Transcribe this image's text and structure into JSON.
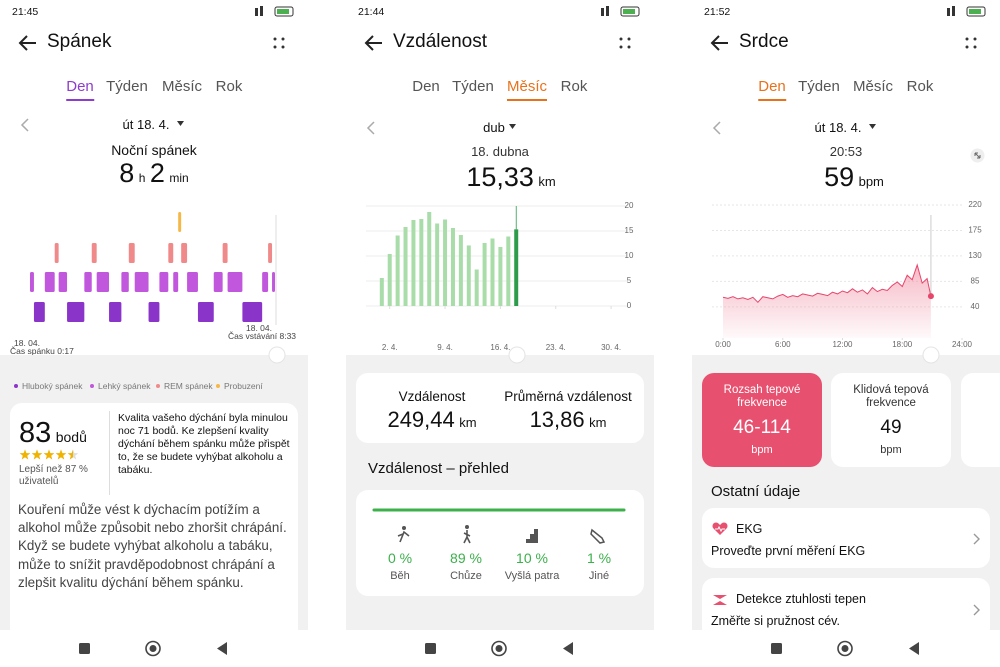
{
  "sleep": {
    "status_time": "21:45",
    "title": "Spánek",
    "tabs": [
      "Den",
      "Týden",
      "Měsíc",
      "Rok"
    ],
    "active_tab": 0,
    "accent": "#8e3ccb",
    "date": "út 18. 4.",
    "summary_label": "Noční spánek",
    "summary_hours": "8",
    "hours_unit": "h",
    "summary_minutes": "2",
    "minutes_unit": "min",
    "chart": {
      "type": "sleep-stages",
      "xlim": [
        0,
        496
      ],
      "series": [
        {
          "name": "Hluboký spánek",
          "color": "#8a34c9",
          "segments": [
            [
              8,
              30
            ],
            [
              75,
              110
            ],
            [
              160,
              185
            ],
            [
              240,
              262
            ],
            [
              340,
              372
            ],
            [
              430,
              470
            ]
          ]
        },
        {
          "name": "Lehký spánek",
          "color": "#c157dc",
          "segments": [
            [
              0,
              8
            ],
            [
              30,
              50
            ],
            [
              58,
              75
            ],
            [
              110,
              125
            ],
            [
              135,
              160
            ],
            [
              185,
              200
            ],
            [
              212,
              240
            ],
            [
              262,
              280
            ],
            [
              290,
              300
            ],
            [
              318,
              340
            ],
            [
              372,
              390
            ],
            [
              400,
              430
            ],
            [
              470,
              482
            ],
            [
              490,
              496
            ]
          ]
        },
        {
          "name": "REM spánek",
          "color": "#f08a8a",
          "segments": [
            [
              50,
              58
            ],
            [
              125,
              135
            ],
            [
              200,
              212
            ],
            [
              280,
              290
            ],
            [
              306,
              318
            ],
            [
              390,
              400
            ],
            [
              482,
              490
            ]
          ]
        },
        {
          "name": "Probuzení",
          "color": "#f6b746",
          "segments": [
            [
              300,
              306
            ]
          ]
        }
      ]
    },
    "start_date": "18. 04.",
    "start_label": "Čas spánku 0:17",
    "end_date": "18. 04.",
    "end_label": "Čas vstávání 8:33",
    "score": "83",
    "score_unit": "bodů",
    "stars": 4.5,
    "better_than": "Lepší než 87 % uživatelů",
    "score_text": "Kvalita vašeho dýchání byla minulou noc 71 bodů. Ke zlepšení kvality dýchání během spánku může přispět to, že se budete vyhýbat alkoholu a tabáku.",
    "advice": "Kouření může vést k dýchacím potížím a alkohol může způsobit nebo zhoršit chrápání. Když se budete vyhýbat alkoholu a tabáku, může to snížit pravděpodobnost chrápání a zlepšit kvalitu dýchání během spánku."
  },
  "distance": {
    "status_time": "21:44",
    "title": "Vzdálenost",
    "tabs": [
      "Den",
      "Týden",
      "Měsíc",
      "Rok"
    ],
    "active_tab": 2,
    "accent": "#e8721c",
    "period": "dub",
    "selected_date": "18. dubna",
    "selected_value": "15,33",
    "unit": "km",
    "chart": {
      "type": "bar",
      "x": [
        1,
        2,
        3,
        4,
        5,
        6,
        7,
        8,
        9,
        10,
        11,
        12,
        13,
        14,
        15,
        16,
        17,
        18
      ],
      "values": [
        5.6,
        10.4,
        14.1,
        15.8,
        17.2,
        17.4,
        18.8,
        16.5,
        17.3,
        15.6,
        14.2,
        12.11,
        7.3,
        12.6,
        13.5,
        11.8,
        13.9,
        15.33
      ],
      "color": "#a8dca8",
      "highlight": {
        "index": 17,
        "color": "#2c9c4a"
      },
      "xlim": [
        -1,
        31
      ],
      "xticks": [
        {
          "value": 2,
          "label": "2. 4."
        },
        {
          "value": 9,
          "label": "9. 4."
        },
        {
          "value": 16,
          "label": "16. 4."
        },
        {
          "value": 23,
          "label": "23. 4."
        },
        {
          "value": 30,
          "label": "30. 4."
        }
      ],
      "ylim": [
        0,
        20
      ],
      "yticks": [
        0,
        5,
        10,
        15,
        20
      ],
      "grid": true
    },
    "total_label": "Vzdálenost",
    "total_value": "249,44",
    "average_label": "Průměrná vzdálenost",
    "average_value": "13,86",
    "overview_title": "Vzdálenost – přehled",
    "activities": [
      {
        "name": "Běh",
        "value": "0 %"
      },
      {
        "name": "Chůze",
        "value": "89 %"
      },
      {
        "name": "Vyšlá patra",
        "value": "10 %"
      },
      {
        "name": "Jiné",
        "value": "1 %"
      }
    ]
  },
  "heart": {
    "status_time": "21:52",
    "title": "Srdce",
    "tabs": [
      "Den",
      "Týden",
      "Měsíc",
      "Rok"
    ],
    "active_tab": 0,
    "accent": "#e8721c",
    "date": "út 18. 4.",
    "selected_time": "20:53",
    "selected_value": "59",
    "unit": "bpm",
    "chart": {
      "type": "line",
      "color": "#e8456b",
      "x": [
        0,
        0.5,
        1,
        1.5,
        2,
        2.5,
        3,
        3.5,
        4,
        4.5,
        5,
        5.5,
        6,
        6.5,
        7,
        7.5,
        8,
        8.5,
        9,
        9.5,
        10,
        10.5,
        11,
        11.5,
        12,
        12.5,
        13,
        13.5,
        14,
        14.5,
        15,
        15.5,
        16,
        16.5,
        17,
        17.5,
        18,
        18.5,
        19,
        19.5,
        20,
        20.5,
        20.88
      ],
      "values": [
        57,
        55,
        58,
        54,
        56,
        53,
        57,
        48,
        58,
        56,
        54,
        59,
        62,
        57,
        60,
        58,
        63,
        61,
        59,
        64,
        62,
        60,
        66,
        63,
        68,
        65,
        72,
        66,
        70,
        63,
        74,
        67,
        71,
        69,
        78,
        84,
        76,
        96,
        88,
        114,
        82,
        90,
        59
      ],
      "xlim": [
        0,
        24
      ],
      "xticks": [
        {
          "value": 0,
          "label": "0:00"
        },
        {
          "value": 6,
          "label": "6:00"
        },
        {
          "value": 12,
          "label": "12:00"
        },
        {
          "value": 18,
          "label": "18:00"
        },
        {
          "value": 24,
          "label": "24:00"
        }
      ],
      "ylim": [
        -15,
        220
      ],
      "yticks": [
        40,
        85,
        130,
        175,
        220
      ],
      "grid": true
    },
    "cards": [
      {
        "title": "Rozsah tepové frekvence",
        "value": "46-114",
        "unit": "bpm"
      },
      {
        "title": "Klidová tepová frekvence",
        "value": "49",
        "unit": "bpm"
      }
    ],
    "other_title": "Ostatní údaje",
    "items": [
      {
        "title": "EKG",
        "subtitle": "Proveďte první měření EKG"
      },
      {
        "title": "Detekce ztuhlosti tepen",
        "subtitle": "Změřte si pružnost cév."
      }
    ]
  }
}
